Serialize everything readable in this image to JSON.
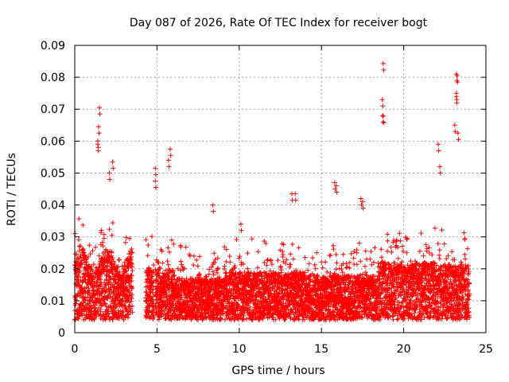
{
  "chart_data": {
    "type": "scatter",
    "title": "Day 087 of 2026, Rate Of TEC Index for receiver bogt",
    "xlabel": "GPS time / hours",
    "ylabel": "ROTI / TECUs",
    "xlim": [
      0,
      25
    ],
    "ylim": [
      0,
      0.09
    ],
    "xticks": [
      0,
      5,
      10,
      15,
      20,
      25
    ],
    "xtick_labels": [
      "0",
      "5",
      "10",
      "15",
      "20",
      "25"
    ],
    "yticks": [
      0,
      0.01,
      0.02,
      0.03,
      0.04,
      0.05,
      0.06,
      0.07,
      0.08,
      0.09
    ],
    "ytick_labels": [
      "0",
      "0.01",
      "0.02",
      "0.03",
      "0.04",
      "0.05",
      "0.06",
      "0.07",
      "0.08",
      "0.09"
    ],
    "grid": true,
    "marker": "+",
    "marker_color": "#ff0000",
    "gaps_hours": [
      [
        3.5,
        4.3
      ],
      [
        4.8,
        4.9
      ]
    ],
    "data_range_hours": [
      0,
      24
    ],
    "series": [
      {
        "name": "ROTI",
        "description": "dense scatter of ROTI values between ~0.003 and ~0.03 TECU/min across the day",
        "notable_points": [
          [
            1.5,
            0.0705
          ],
          [
            1.45,
            0.0645
          ],
          [
            1.4,
            0.06
          ],
          [
            1.4,
            0.059
          ],
          [
            2.3,
            0.0535
          ],
          [
            2.1,
            0.05
          ],
          [
            5.8,
            0.0575
          ],
          [
            5.7,
            0.054
          ],
          [
            4.9,
            0.0515
          ],
          [
            4.9,
            0.0475
          ],
          [
            18.75,
            0.0843
          ],
          [
            18.7,
            0.073
          ],
          [
            18.72,
            0.068
          ],
          [
            18.75,
            0.0678
          ],
          [
            23.2,
            0.081
          ],
          [
            23.25,
            0.0805
          ],
          [
            23.2,
            0.075
          ],
          [
            23.2,
            0.074
          ],
          [
            23.1,
            0.065
          ],
          [
            23.3,
            0.0625
          ],
          [
            22.1,
            0.059
          ],
          [
            22.2,
            0.052
          ],
          [
            13.2,
            0.0435
          ],
          [
            13.4,
            0.0435
          ],
          [
            15.8,
            0.047
          ],
          [
            15.9,
            0.046
          ],
          [
            17.4,
            0.042
          ],
          [
            17.5,
            0.041
          ],
          [
            8.4,
            0.04
          ],
          [
            10.1,
            0.034
          ]
        ]
      }
    ]
  }
}
